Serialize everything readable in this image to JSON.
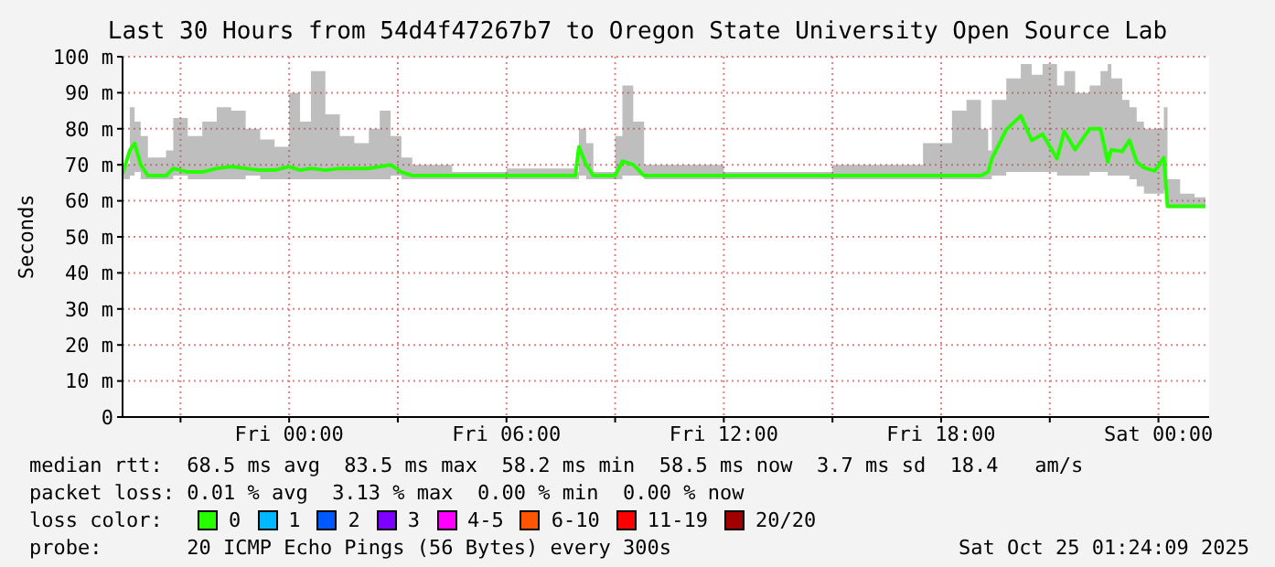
{
  "chart_data": {
    "type": "line",
    "title": "Last 30 Hours from 54d4f47267b7 to Oregon State University Open Source Lab",
    "ylabel": "Seconds",
    "xlim": [
      "2025-10-23T19:24",
      "2025-10-25T01:24"
    ],
    "xticks": [
      {
        "value": "2025-10-23T21:00",
        "label": null
      },
      {
        "value": "2025-10-24T00:00",
        "label": "Fri 00:00"
      },
      {
        "value": "2025-10-24T03:00",
        "label": null
      },
      {
        "value": "2025-10-24T06:00",
        "label": "Fri 06:00"
      },
      {
        "value": "2025-10-24T09:00",
        "label": null
      },
      {
        "value": "2025-10-24T12:00",
        "label": "Fri 12:00"
      },
      {
        "value": "2025-10-24T15:00",
        "label": null
      },
      {
        "value": "2025-10-24T18:00",
        "label": "Fri 18:00"
      },
      {
        "value": "2025-10-24T21:00",
        "label": null
      },
      {
        "value": "2025-10-25T00:00",
        "label": "Sat 00:00"
      }
    ],
    "ylim": [
      0,
      100
    ],
    "yticks": [
      0,
      {
        "value": 10,
        "label": "10 m"
      },
      {
        "value": 20,
        "label": "20 m"
      },
      {
        "value": 30,
        "label": "30 m"
      },
      {
        "value": 40,
        "label": "40 m"
      },
      {
        "value": 50,
        "label": "50 m"
      },
      {
        "value": 60,
        "label": "60 m"
      },
      {
        "value": 70,
        "label": "70 m"
      },
      {
        "value": 80,
        "label": "80 m"
      },
      {
        "value": 90,
        "label": "90 m"
      },
      {
        "value": 100,
        "label": "100 m"
      }
    ],
    "grid": true,
    "legend": "bottom",
    "legend_title": "loss color:",
    "marker": "none",
    "line_style": "solid",
    "series": [
      {
        "name": "0",
        "color": "#26ff00",
        "x": [
          "2025-10-23T19:24",
          "2025-10-23T19:36",
          "2025-10-23T19:44",
          "2025-10-23T19:54",
          "2025-10-23T20:06",
          "2025-10-23T20:36",
          "2025-10-23T20:48",
          "2025-10-23T21:12",
          "2025-10-23T21:36",
          "2025-10-23T22:00",
          "2025-10-23T22:24",
          "2025-10-23T22:48",
          "2025-10-23T23:12",
          "2025-10-23T23:36",
          "2025-10-24T00:00",
          "2025-10-24T00:18",
          "2025-10-24T00:36",
          "2025-10-24T01:00",
          "2025-10-24T01:24",
          "2025-10-24T01:48",
          "2025-10-24T02:12",
          "2025-10-24T02:30",
          "2025-10-24T02:48",
          "2025-10-24T03:06",
          "2025-10-24T03:24",
          "2025-10-24T04:30",
          "2025-10-24T06:00",
          "2025-10-24T07:54",
          "2025-10-24T08:00",
          "2025-10-24T08:12",
          "2025-10-24T08:24",
          "2025-10-24T09:00",
          "2025-10-24T09:12",
          "2025-10-24T09:30",
          "2025-10-24T09:48",
          "2025-10-24T12:00",
          "2025-10-24T15:00",
          "2025-10-24T17:30",
          "2025-10-24T18:18",
          "2025-10-24T18:42",
          "2025-10-24T19:06",
          "2025-10-24T19:18",
          "2025-10-24T19:24",
          "2025-10-24T19:48",
          "2025-10-24T20:12",
          "2025-10-24T20:30",
          "2025-10-24T20:48",
          "2025-10-24T21:12",
          "2025-10-24T21:24",
          "2025-10-24T21:42",
          "2025-10-24T22:06",
          "2025-10-24T22:24",
          "2025-10-24T22:36",
          "2025-10-24T22:42",
          "2025-10-24T23:00",
          "2025-10-24T23:12",
          "2025-10-24T23:24",
          "2025-10-24T23:36",
          "2025-10-24T23:54",
          "2025-10-25T00:09",
          "2025-10-25T00:15",
          "2025-10-25T00:36",
          "2025-10-25T01:00",
          "2025-10-25T01:18"
        ],
        "values": [
          67.5,
          74,
          76,
          70,
          67,
          67,
          69,
          68,
          68,
          69,
          69.5,
          69,
          68.5,
          68.5,
          69.5,
          68.5,
          69,
          68.5,
          69,
          69,
          69,
          69.5,
          70,
          68,
          67,
          67,
          67,
          67,
          75,
          70,
          67,
          67,
          71,
          70,
          67,
          67,
          67,
          67,
          67,
          67,
          67,
          68,
          71.7,
          79.8,
          83.6,
          76.8,
          78.5,
          71.7,
          79.3,
          74.2,
          80,
          80,
          70.8,
          74.2,
          73.7,
          76.8,
          70.8,
          69.2,
          68.3,
          72,
          58.5,
          58.5,
          58.5,
          58.5
        ],
        "lower": [
          66,
          67,
          68,
          66,
          66,
          66,
          67,
          66,
          66,
          66,
          66,
          67,
          66,
          66,
          66,
          66,
          66,
          66,
          66,
          66,
          66,
          66,
          67,
          66,
          66,
          66,
          66,
          66,
          67,
          66,
          66,
          66,
          67,
          67,
          66,
          66,
          66,
          66,
          66,
          66,
          66,
          66,
          67,
          68,
          68,
          68,
          68,
          67,
          67,
          67,
          68,
          68,
          67,
          67,
          67,
          66,
          64,
          62,
          62,
          63,
          58,
          58,
          58,
          58
        ],
        "upper": [
          70,
          86,
          82,
          78,
          72,
          74,
          83,
          78,
          82,
          86,
          85,
          80,
          77,
          75,
          90,
          82,
          96,
          84,
          78,
          76,
          80,
          85,
          78,
          72,
          70,
          68,
          69,
          68,
          80,
          76,
          68,
          78,
          92,
          82,
          70,
          68,
          70,
          76,
          85,
          88,
          80,
          74,
          88,
          94,
          98,
          95,
          98,
          92,
          96,
          90,
          92,
          96,
          98,
          94,
          88,
          86,
          82,
          80,
          80,
          86,
          66,
          62,
          61,
          60
        ]
      },
      {
        "name": "1",
        "color": "#00b8ff"
      },
      {
        "name": "2",
        "color": "#0059ff"
      },
      {
        "name": "3",
        "color": "#7e00ff"
      },
      {
        "name": "4-5",
        "color": "#ff00ff"
      },
      {
        "name": "6-10",
        "color": "#ff5500"
      },
      {
        "name": "11-19",
        "color": "#ff0000"
      },
      {
        "name": "20/20",
        "color": "#a10000"
      }
    ],
    "annotations": [
      "median rtt:  68.5 ms avg  83.5 ms max  58.2 ms min  58.5 ms now  3.7 ms sd  18.4   am/s",
      "packet loss: 0.01 % avg  3.13 % max  0.00 % min  0.00 % now",
      "probe:       20 ICMP Echo Pings (56 Bytes) every 300s",
      "Sat Oct 25 01:24:09 2025"
    ]
  }
}
